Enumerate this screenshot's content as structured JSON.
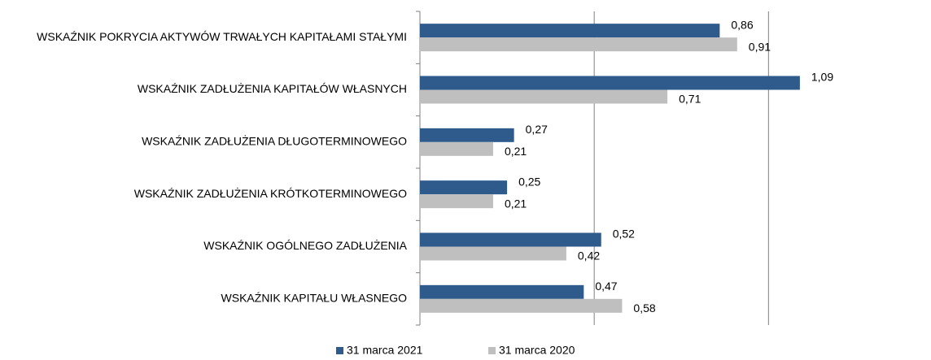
{
  "chart_data": {
    "type": "bar",
    "orientation": "horizontal",
    "categories": [
      "WSKAŹNIK POKRYCIA AKTYWÓW TRWAŁYCH KAPITAŁAMI STAŁYMI",
      "WSKAŹNIK ZADŁUŻENIA KAPITAŁÓW WŁASNYCH",
      "WSKAŹNIK ZADŁUŻENIA DŁUGOTERMINOWEGO",
      "WSKAŹNIK ZADŁUŻENIA KRÓTKOTERMINOWEGO",
      "WSKAŹNIK OGÓLNEGO ZADŁUŻENIA",
      "WSKAŹNIK KAPITAŁU WŁASNEGO"
    ],
    "series": [
      {
        "name": "31 marca 2021",
        "color": "#2e5a8c",
        "values": [
          0.86,
          1.09,
          0.27,
          0.25,
          0.52,
          0.47
        ],
        "value_labels": [
          "0,86",
          "1,09",
          "0,27",
          "0,25",
          "0,52",
          "0,47"
        ]
      },
      {
        "name": "31 marca 2020",
        "color": "#bfbfbf",
        "values": [
          0.91,
          0.71,
          0.21,
          0.21,
          0.42,
          0.58
        ],
        "value_labels": [
          "0,91",
          "0,71",
          "0,21",
          "0,21",
          "0,42",
          "0,58"
        ]
      }
    ],
    "xlim": [
      0,
      1.2
    ],
    "xticks": [
      0.5,
      1
    ],
    "grid": true,
    "legend": "bottom"
  }
}
